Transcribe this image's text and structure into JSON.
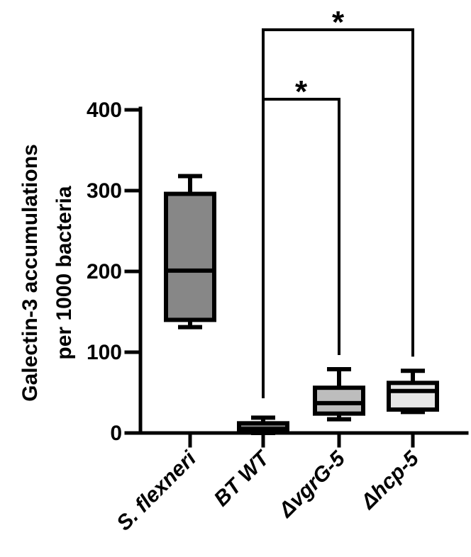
{
  "chart_data": {
    "type": "box",
    "ylabel_line1": "Galectin-3 accumulations",
    "ylabel_line2": "per 1000 bacteria",
    "ylim": [
      0,
      400
    ],
    "yticks": [
      0,
      100,
      200,
      300,
      400
    ],
    "ytick_labels": [
      "0",
      "100",
      "200",
      "300",
      "400"
    ],
    "categories": [
      "S. flexneri",
      "BT WT",
      "ΔvgrG-5",
      "Δhcp-5"
    ],
    "boxes": [
      {
        "name": "S. flexneri",
        "min": 131,
        "q1": 140,
        "median": 201,
        "q3": 296,
        "max": 318,
        "color": "#878787"
      },
      {
        "name": "BT WT",
        "min": 0,
        "q1": 2,
        "median": 5,
        "q3": 12,
        "max": 19,
        "color": "#878787"
      },
      {
        "name": "ΔvgrG-5",
        "min": 17,
        "q1": 24,
        "median": 37,
        "q3": 56,
        "max": 79,
        "color": "#bdbdbd"
      },
      {
        "name": "Δhcp-5",
        "min": 26,
        "q1": 29,
        "median": 52,
        "q3": 62,
        "max": 77,
        "color": "#e6e6e6"
      }
    ],
    "significance": [
      {
        "from": "BT WT",
        "to": "ΔvgrG-5",
        "label": "*"
      },
      {
        "from": "BT WT",
        "to": "Δhcp-5",
        "label": "*"
      }
    ]
  }
}
